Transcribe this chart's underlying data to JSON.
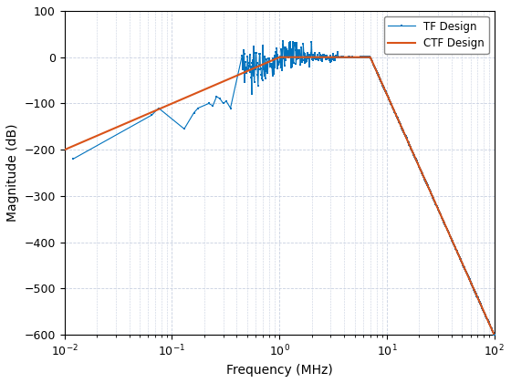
{
  "title": "",
  "xlabel": "Frequency (MHz)",
  "ylabel": "Magnitude (dB)",
  "xlim": [
    0.01,
    100
  ],
  "ylim": [
    -600,
    100
  ],
  "yticks": [
    100,
    0,
    -100,
    -200,
    -300,
    -400,
    -500,
    -600
  ],
  "tf_color": "#0072BD",
  "ctf_color": "#D95319",
  "tf_label": "TF Design",
  "ctf_label": "CTF Design",
  "background_color": "#ffffff",
  "grid_color": "#c8d0e0",
  "figsize": [
    5.6,
    4.2
  ],
  "dpi": 100
}
